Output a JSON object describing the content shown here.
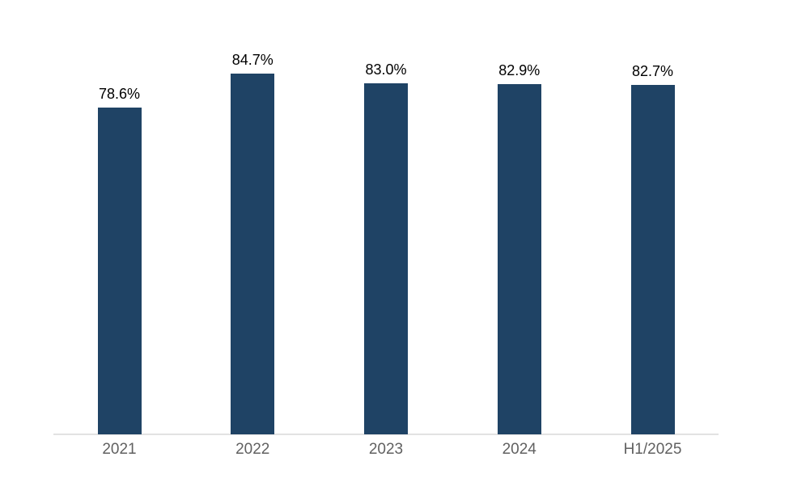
{
  "chart_data": {
    "type": "bar",
    "categories": [
      "2021",
      "2022",
      "2023",
      "2024",
      "H1/2025"
    ],
    "values": [
      78.6,
      84.7,
      83.0,
      82.9,
      82.7
    ],
    "labels": [
      "78.6%",
      "84.7%",
      "83.0%",
      "82.9%",
      "82.7%"
    ],
    "title": "",
    "xlabel": "",
    "ylabel": "",
    "ylim": [
      20,
      90
    ],
    "grid": false,
    "legend": false,
    "colors": {
      "bar": "#1F4365",
      "value_label": "#000000",
      "tick_label": "#616161",
      "axis_line": "#E2E2E2",
      "background": "#FFFFFF"
    }
  }
}
